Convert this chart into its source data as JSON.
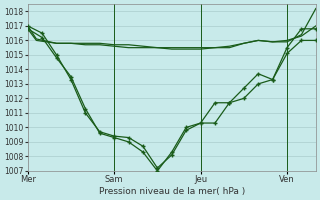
{
  "bg_color": "#c8eaea",
  "grid_color": "#aacccc",
  "line_color": "#1a5c1a",
  "ylabel": "Pression niveau de la mer( hPa )",
  "ylim": [
    1007,
    1018.5
  ],
  "yticks": [
    1007,
    1008,
    1009,
    1010,
    1011,
    1012,
    1013,
    1014,
    1015,
    1016,
    1017,
    1018
  ],
  "xtick_labels": [
    "Mer",
    "Sam",
    "Jeu",
    "Ven"
  ],
  "xtick_pos": [
    0,
    3,
    6,
    9
  ],
  "line1": {
    "x": [
      0,
      0.3,
      1.0,
      1.5,
      2.0,
      2.5,
      3.0,
      3.5,
      4.0,
      4.5,
      5.0,
      5.5,
      6.0,
      6.5,
      7.0,
      7.5,
      8.0,
      8.5,
      9.0,
      9.5,
      10.0
    ],
    "y": [
      1017.0,
      1016.1,
      1015.8,
      1015.8,
      1015.8,
      1015.8,
      1015.7,
      1015.7,
      1015.6,
      1015.5,
      1015.5,
      1015.5,
      1015.5,
      1015.5,
      1015.5,
      1015.8,
      1016.0,
      1015.9,
      1015.9,
      1016.4,
      1018.2
    ],
    "marker": false
  },
  "line2": {
    "x": [
      0,
      0.3,
      1.0,
      1.5,
      2.0,
      2.5,
      3.0,
      3.5,
      4.0,
      4.5,
      5.0,
      5.5,
      6.0,
      6.5,
      7.0,
      7.5,
      8.0,
      8.5,
      9.0,
      9.5,
      10.0
    ],
    "y": [
      1016.8,
      1016.0,
      1015.8,
      1015.8,
      1015.7,
      1015.7,
      1015.6,
      1015.5,
      1015.5,
      1015.5,
      1015.4,
      1015.4,
      1015.4,
      1015.5,
      1015.6,
      1015.8,
      1016.0,
      1015.9,
      1016.0,
      1016.3,
      1017.0
    ],
    "marker": false
  },
  "line3": {
    "x": [
      0,
      0.5,
      1.0,
      1.5,
      2.0,
      2.5,
      3.0,
      3.5,
      4.0,
      4.5,
      5.0,
      5.5,
      6.0,
      6.5,
      7.0,
      7.5,
      8.0,
      8.5,
      9.0,
      9.5,
      10.0
    ],
    "y": [
      1017.0,
      1016.5,
      1015.0,
      1013.3,
      1011.0,
      1009.7,
      1009.4,
      1009.3,
      1008.7,
      1007.2,
      1008.1,
      1009.8,
      1010.3,
      1010.3,
      1011.7,
      1012.0,
      1013.0,
      1013.3,
      1015.1,
      1016.0,
      1016.0
    ],
    "marker": true
  },
  "line4": {
    "x": [
      0,
      0.5,
      1.0,
      1.5,
      2.0,
      2.5,
      3.0,
      3.5,
      4.0,
      4.5,
      5.0,
      5.5,
      6.0,
      6.5,
      7.0,
      7.5,
      8.0,
      8.5,
      9.0,
      9.5,
      10.0
    ],
    "y": [
      1016.8,
      1016.2,
      1014.8,
      1013.5,
      1011.3,
      1009.6,
      1009.3,
      1009.0,
      1008.3,
      1007.0,
      1008.3,
      1010.0,
      1010.3,
      1011.7,
      1011.7,
      1012.7,
      1013.7,
      1013.3,
      1015.5,
      1016.8,
      1016.8
    ],
    "marker": true
  },
  "vlines_x": [
    3.0,
    6.0,
    9.0
  ],
  "figsize": [
    3.2,
    2.0
  ],
  "dpi": 100
}
